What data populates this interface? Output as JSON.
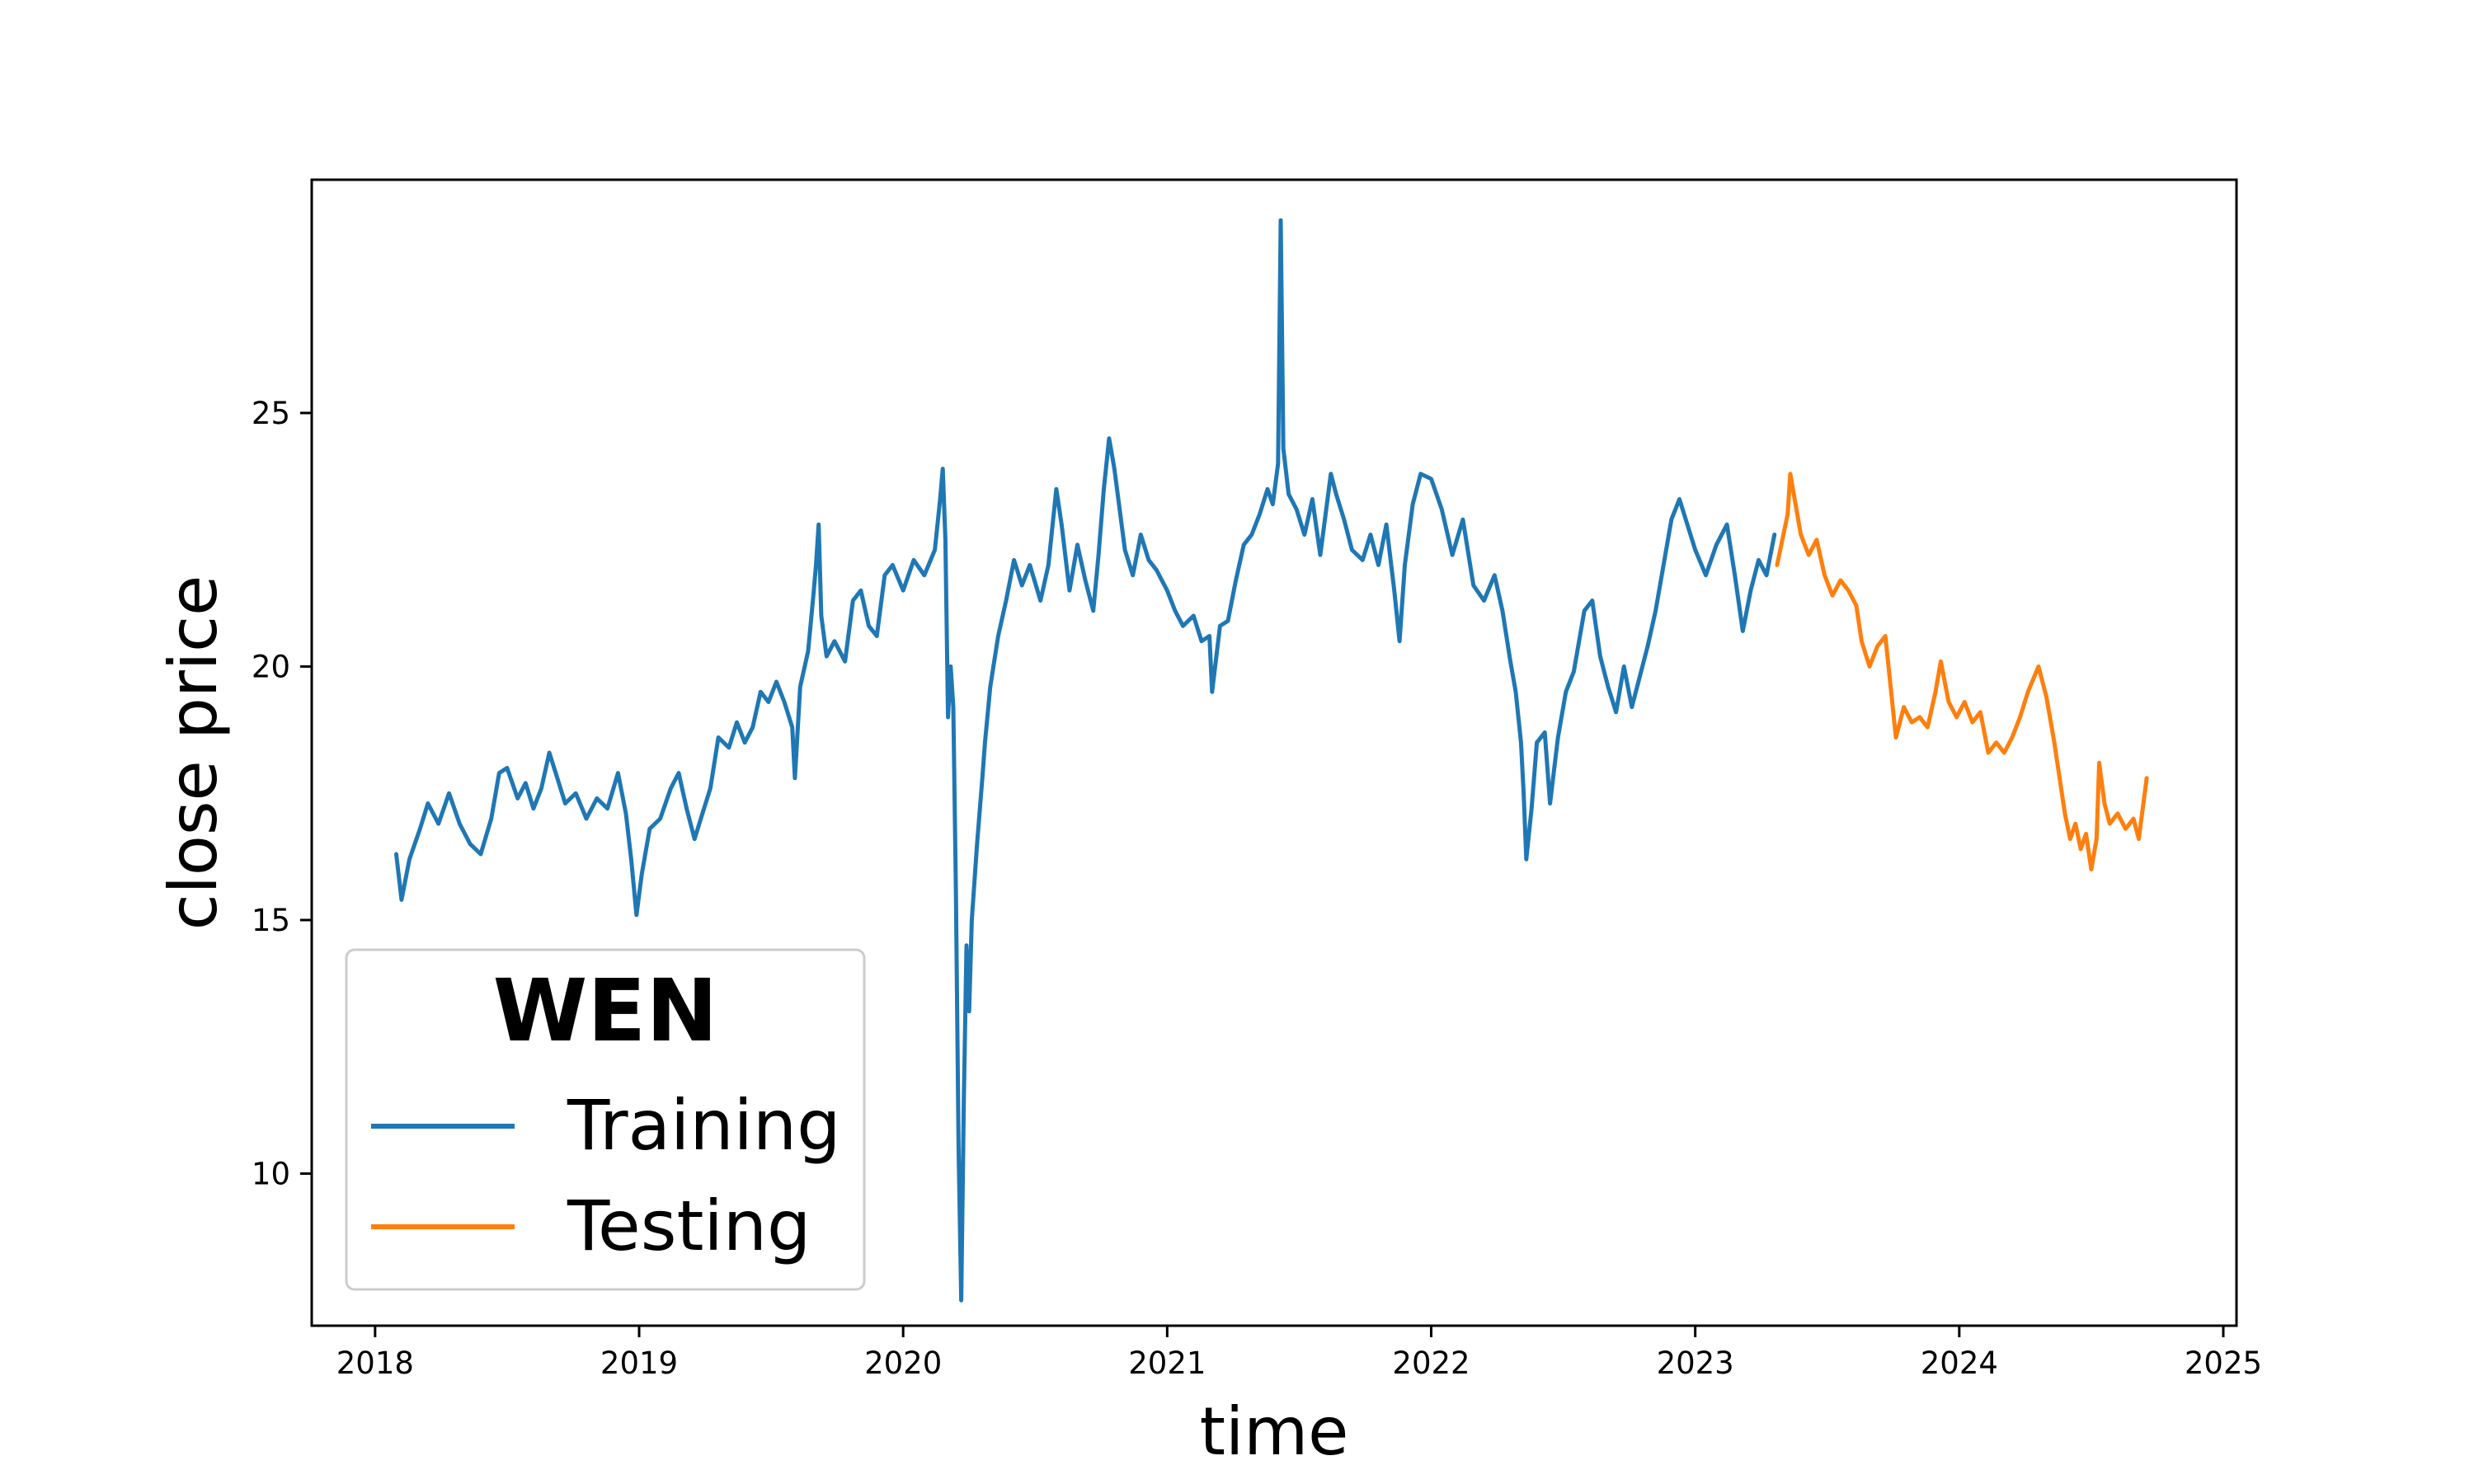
{
  "chart_data": {
    "type": "line",
    "title": "",
    "xlabel": "time",
    "ylabel": "close price",
    "xlim": [
      2017.76,
      2025.05
    ],
    "ylim": [
      7.0,
      29.6
    ],
    "x_ticks": [
      "2018",
      "2019",
      "2020",
      "2021",
      "2022",
      "2023",
      "2024",
      "2025"
    ],
    "y_ticks": [
      "10",
      "15",
      "20",
      "25"
    ],
    "grid": false,
    "legend": {
      "title": "WEN",
      "placement": "lower-left"
    },
    "series": [
      {
        "name": "Training",
        "color": "#1f77b4",
        "points": [
          [
            2018.08,
            16.3
          ],
          [
            2018.1,
            15.4
          ],
          [
            2018.13,
            16.2
          ],
          [
            2018.17,
            16.8
          ],
          [
            2018.2,
            17.3
          ],
          [
            2018.24,
            16.9
          ],
          [
            2018.28,
            17.5
          ],
          [
            2018.32,
            16.9
          ],
          [
            2018.36,
            16.5
          ],
          [
            2018.4,
            16.3
          ],
          [
            2018.44,
            17.0
          ],
          [
            2018.47,
            17.9
          ],
          [
            2018.5,
            18.0
          ],
          [
            2018.54,
            17.4
          ],
          [
            2018.57,
            17.7
          ],
          [
            2018.6,
            17.2
          ],
          [
            2018.63,
            17.6
          ],
          [
            2018.66,
            18.3
          ],
          [
            2018.69,
            17.8
          ],
          [
            2018.72,
            17.3
          ],
          [
            2018.76,
            17.5
          ],
          [
            2018.8,
            17.0
          ],
          [
            2018.84,
            17.4
          ],
          [
            2018.88,
            17.2
          ],
          [
            2018.92,
            17.9
          ],
          [
            2018.95,
            17.1
          ],
          [
            2018.97,
            16.2
          ],
          [
            2018.99,
            15.1
          ],
          [
            2019.01,
            15.9
          ],
          [
            2019.04,
            16.8
          ],
          [
            2019.08,
            17.0
          ],
          [
            2019.12,
            17.6
          ],
          [
            2019.15,
            17.9
          ],
          [
            2019.18,
            17.2
          ],
          [
            2019.21,
            16.6
          ],
          [
            2019.24,
            17.1
          ],
          [
            2019.27,
            17.6
          ],
          [
            2019.3,
            18.6
          ],
          [
            2019.34,
            18.4
          ],
          [
            2019.37,
            18.9
          ],
          [
            2019.4,
            18.5
          ],
          [
            2019.43,
            18.8
          ],
          [
            2019.46,
            19.5
          ],
          [
            2019.49,
            19.3
          ],
          [
            2019.52,
            19.7
          ],
          [
            2019.55,
            19.3
          ],
          [
            2019.58,
            18.8
          ],
          [
            2019.59,
            17.8
          ],
          [
            2019.61,
            19.6
          ],
          [
            2019.64,
            20.3
          ],
          [
            2019.66,
            21.4
          ],
          [
            2019.67,
            22.0
          ],
          [
            2019.68,
            22.8
          ],
          [
            2019.69,
            21.0
          ],
          [
            2019.71,
            20.2
          ],
          [
            2019.74,
            20.5
          ],
          [
            2019.78,
            20.1
          ],
          [
            2019.81,
            21.3
          ],
          [
            2019.84,
            21.5
          ],
          [
            2019.87,
            20.8
          ],
          [
            2019.9,
            20.6
          ],
          [
            2019.93,
            21.8
          ],
          [
            2019.96,
            22.0
          ],
          [
            2020.0,
            21.5
          ],
          [
            2020.04,
            22.1
          ],
          [
            2020.08,
            21.8
          ],
          [
            2020.12,
            22.3
          ],
          [
            2020.14,
            23.3
          ],
          [
            2020.15,
            23.9
          ],
          [
            2020.16,
            22.5
          ],
          [
            2020.17,
            19.0
          ],
          [
            2020.18,
            20.0
          ],
          [
            2020.19,
            19.2
          ],
          [
            2020.2,
            15.5
          ],
          [
            2020.21,
            10.5
          ],
          [
            2020.22,
            7.5
          ],
          [
            2020.23,
            11.5
          ],
          [
            2020.24,
            14.5
          ],
          [
            2020.25,
            13.2
          ],
          [
            2020.26,
            15.0
          ],
          [
            2020.28,
            16.5
          ],
          [
            2020.3,
            17.8
          ],
          [
            2020.31,
            18.5
          ],
          [
            2020.33,
            19.6
          ],
          [
            2020.36,
            20.6
          ],
          [
            2020.39,
            21.3
          ],
          [
            2020.42,
            22.1
          ],
          [
            2020.45,
            21.6
          ],
          [
            2020.48,
            22.0
          ],
          [
            2020.52,
            21.3
          ],
          [
            2020.55,
            22.0
          ],
          [
            2020.58,
            23.5
          ],
          [
            2020.6,
            22.8
          ],
          [
            2020.63,
            21.5
          ],
          [
            2020.66,
            22.4
          ],
          [
            2020.69,
            21.7
          ],
          [
            2020.72,
            21.1
          ],
          [
            2020.74,
            22.2
          ],
          [
            2020.76,
            23.5
          ],
          [
            2020.78,
            24.5
          ],
          [
            2020.8,
            23.9
          ],
          [
            2020.82,
            23.1
          ],
          [
            2020.84,
            22.3
          ],
          [
            2020.87,
            21.8
          ],
          [
            2020.9,
            22.6
          ],
          [
            2020.93,
            22.1
          ],
          [
            2020.96,
            21.9
          ],
          [
            2021.0,
            21.5
          ],
          [
            2021.03,
            21.1
          ],
          [
            2021.06,
            20.8
          ],
          [
            2021.1,
            21.0
          ],
          [
            2021.13,
            20.5
          ],
          [
            2021.16,
            20.6
          ],
          [
            2021.17,
            19.5
          ],
          [
            2021.2,
            20.8
          ],
          [
            2021.23,
            20.9
          ],
          [
            2021.26,
            21.7
          ],
          [
            2021.29,
            22.4
          ],
          [
            2021.32,
            22.6
          ],
          [
            2021.35,
            23.0
          ],
          [
            2021.38,
            23.5
          ],
          [
            2021.4,
            23.2
          ],
          [
            2021.42,
            24.0
          ],
          [
            2021.43,
            28.8
          ],
          [
            2021.44,
            24.3
          ],
          [
            2021.46,
            23.4
          ],
          [
            2021.49,
            23.1
          ],
          [
            2021.52,
            22.6
          ],
          [
            2021.55,
            23.3
          ],
          [
            2021.58,
            22.2
          ],
          [
            2021.62,
            23.8
          ],
          [
            2021.64,
            23.4
          ],
          [
            2021.67,
            22.9
          ],
          [
            2021.7,
            22.3
          ],
          [
            2021.74,
            22.1
          ],
          [
            2021.77,
            22.6
          ],
          [
            2021.8,
            22.0
          ],
          [
            2021.83,
            22.8
          ],
          [
            2021.86,
            21.5
          ],
          [
            2021.88,
            20.5
          ],
          [
            2021.9,
            22.0
          ],
          [
            2021.93,
            23.2
          ],
          [
            2021.96,
            23.8
          ],
          [
            2022.0,
            23.7
          ],
          [
            2022.04,
            23.1
          ],
          [
            2022.08,
            22.2
          ],
          [
            2022.12,
            22.9
          ],
          [
            2022.16,
            21.6
          ],
          [
            2022.2,
            21.3
          ],
          [
            2022.24,
            21.8
          ],
          [
            2022.27,
            21.1
          ],
          [
            2022.3,
            20.1
          ],
          [
            2022.32,
            19.5
          ],
          [
            2022.34,
            18.5
          ],
          [
            2022.35,
            17.5
          ],
          [
            2022.36,
            16.2
          ],
          [
            2022.38,
            17.2
          ],
          [
            2022.4,
            18.5
          ],
          [
            2022.43,
            18.7
          ],
          [
            2022.45,
            17.3
          ],
          [
            2022.48,
            18.6
          ],
          [
            2022.51,
            19.5
          ],
          [
            2022.54,
            19.9
          ],
          [
            2022.58,
            21.1
          ],
          [
            2022.61,
            21.3
          ],
          [
            2022.64,
            20.2
          ],
          [
            2022.67,
            19.6
          ],
          [
            2022.7,
            19.1
          ],
          [
            2022.73,
            20.0
          ],
          [
            2022.76,
            19.2
          ],
          [
            2022.79,
            19.8
          ],
          [
            2022.82,
            20.4
          ],
          [
            2022.85,
            21.1
          ],
          [
            2022.88,
            22.0
          ],
          [
            2022.91,
            22.9
          ],
          [
            2022.94,
            23.3
          ],
          [
            2022.97,
            22.8
          ],
          [
            2023.0,
            22.3
          ],
          [
            2023.04,
            21.8
          ],
          [
            2023.08,
            22.4
          ],
          [
            2023.12,
            22.8
          ],
          [
            2023.15,
            21.8
          ],
          [
            2023.18,
            20.7
          ],
          [
            2023.21,
            21.5
          ],
          [
            2023.24,
            22.1
          ],
          [
            2023.27,
            21.8
          ],
          [
            2023.3,
            22.6
          ]
        ]
      },
      {
        "name": "Testing",
        "color": "#ff7f0e",
        "points": [
          [
            2023.31,
            22.0
          ],
          [
            2023.33,
            22.5
          ],
          [
            2023.35,
            23.0
          ],
          [
            2023.36,
            23.8
          ],
          [
            2023.38,
            23.2
          ],
          [
            2023.4,
            22.6
          ],
          [
            2023.43,
            22.2
          ],
          [
            2023.46,
            22.5
          ],
          [
            2023.49,
            21.8
          ],
          [
            2023.52,
            21.4
          ],
          [
            2023.55,
            21.7
          ],
          [
            2023.58,
            21.5
          ],
          [
            2023.61,
            21.2
          ],
          [
            2023.63,
            20.5
          ],
          [
            2023.66,
            20.0
          ],
          [
            2023.69,
            20.4
          ],
          [
            2023.72,
            20.6
          ],
          [
            2023.74,
            19.6
          ],
          [
            2023.76,
            18.6
          ],
          [
            2023.79,
            19.2
          ],
          [
            2023.82,
            18.9
          ],
          [
            2023.85,
            19.0
          ],
          [
            2023.88,
            18.8
          ],
          [
            2023.91,
            19.5
          ],
          [
            2023.93,
            20.1
          ],
          [
            2023.96,
            19.3
          ],
          [
            2023.99,
            19.0
          ],
          [
            2024.02,
            19.3
          ],
          [
            2024.05,
            18.9
          ],
          [
            2024.08,
            19.1
          ],
          [
            2024.11,
            18.3
          ],
          [
            2024.14,
            18.5
          ],
          [
            2024.17,
            18.3
          ],
          [
            2024.2,
            18.6
          ],
          [
            2024.23,
            19.0
          ],
          [
            2024.26,
            19.5
          ],
          [
            2024.3,
            20.0
          ],
          [
            2024.33,
            19.4
          ],
          [
            2024.36,
            18.5
          ],
          [
            2024.38,
            17.8
          ],
          [
            2024.4,
            17.1
          ],
          [
            2024.42,
            16.6
          ],
          [
            2024.44,
            16.9
          ],
          [
            2024.46,
            16.4
          ],
          [
            2024.48,
            16.7
          ],
          [
            2024.5,
            16.0
          ],
          [
            2024.52,
            16.6
          ],
          [
            2024.53,
            18.1
          ],
          [
            2024.55,
            17.3
          ],
          [
            2024.57,
            16.9
          ],
          [
            2024.6,
            17.1
          ],
          [
            2024.63,
            16.8
          ],
          [
            2024.66,
            17.0
          ],
          [
            2024.68,
            16.6
          ],
          [
            2024.7,
            17.4
          ],
          [
            2024.71,
            17.8
          ]
        ]
      }
    ]
  }
}
